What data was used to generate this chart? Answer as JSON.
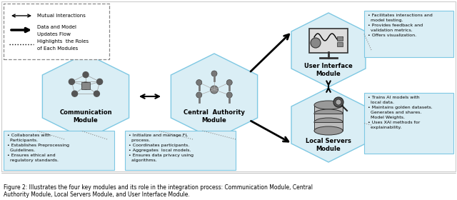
{
  "title_line1": "Figure 2: Illustrates the four key modules and its role in the integration process: Communication Module, Central",
  "title_line2": "Authority Module, Local Servers Module, and User Interface Module.",
  "bg_color": "#ffffff",
  "hex_fill": "#daeef5",
  "hex_edge": "#7ec8e3",
  "box_fill": "#daeef5",
  "box_edge": "#7ec8e3",
  "comm_bullets": "• Collaborates with\n  Participants.\n• Establishes Preprocessing\n  Guidelines.\n• Ensures ethical and\n  regulatory standards.",
  "central_bullets": "• Initialize and manage FL\n  process.\n• Coordinates participants.\n• Aggregates  local models.\n• Ensures data privacy using\n  algorithms.",
  "ui_bullets": "• Facilitates interactions and\n  model testing.\n• Provides feedback and\n  validation metrics.\n• Offers visualization.",
  "local_bullets": "• Trains AI models with\n  local data.\n• Maintains golden datasets.\n  Generates and shares.\n  Model Weights.\n• Uses XAI methods for\n  explainability."
}
